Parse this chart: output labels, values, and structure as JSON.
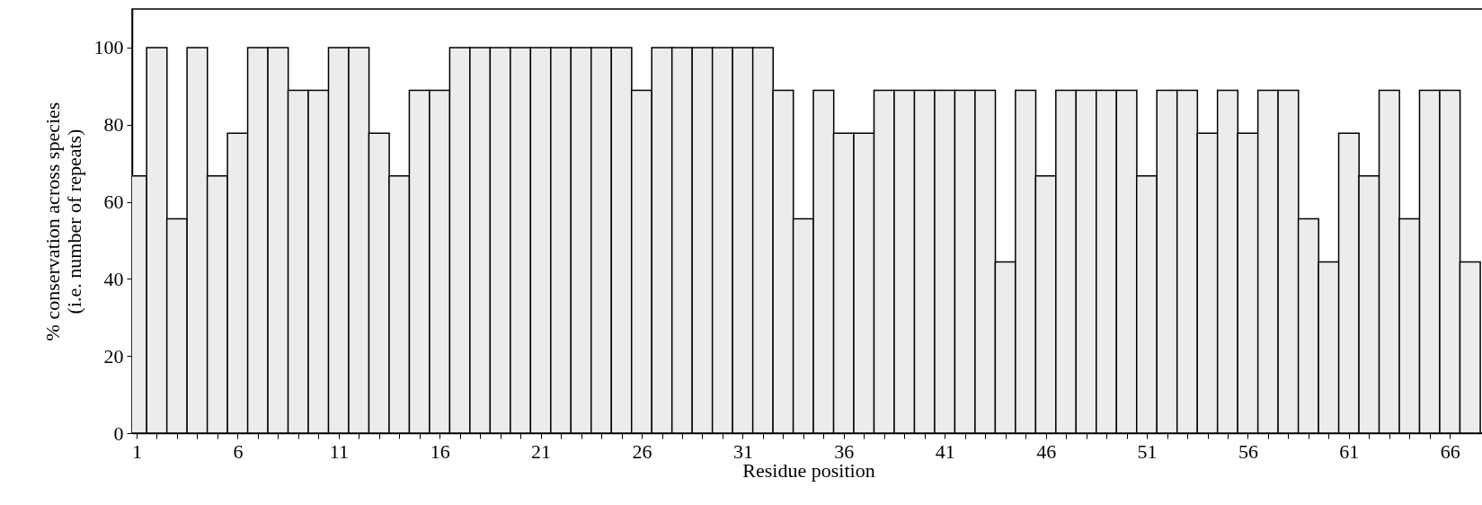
{
  "chart_data": {
    "type": "bar",
    "xlabel": "Residue position",
    "ylabel": "% conservation across species\n(i.e. number of repeats)",
    "color": "#ececec",
    "x": [
      1,
      2,
      3,
      4,
      5,
      6,
      7,
      8,
      9,
      10,
      11,
      12,
      13,
      14,
      15,
      16,
      17,
      18,
      19,
      20,
      21,
      22,
      23,
      24,
      25,
      26,
      27,
      28,
      29,
      30,
      31,
      32,
      33,
      34,
      35,
      36,
      37,
      38,
      39,
      40,
      41,
      42,
      43,
      44,
      45,
      46,
      47,
      48,
      49,
      50,
      51,
      52,
      53,
      54,
      55,
      56,
      57,
      58,
      59,
      60,
      61,
      62,
      63,
      64,
      65,
      66,
      67
    ],
    "values": [
      66.7,
      100,
      55.6,
      100,
      66.7,
      77.8,
      100,
      100,
      88.9,
      88.9,
      100,
      100,
      77.8,
      66.7,
      88.9,
      88.9,
      100,
      100,
      100,
      100,
      100,
      100,
      100,
      100,
      100,
      88.9,
      100,
      100,
      100,
      100,
      100,
      100,
      88.9,
      55.6,
      88.9,
      77.8,
      77.8,
      88.9,
      88.9,
      88.9,
      88.9,
      88.9,
      88.9,
      44.4,
      88.9,
      66.7,
      88.9,
      88.9,
      88.9,
      88.9,
      66.7,
      88.9,
      88.9,
      77.8,
      88.9,
      77.8,
      88.9,
      88.9,
      55.6,
      44.4,
      77.8,
      66.7,
      88.9,
      55.6,
      88.9,
      88.9,
      44.4
    ],
    "xlim": [
      1,
      67.5
    ],
    "xticks": [
      1,
      {
        "value": 2,
        "label": null
      },
      {
        "value": 3,
        "label": null
      },
      {
        "value": 4,
        "label": null
      },
      {
        "value": 5,
        "label": null
      },
      6,
      {
        "value": 7,
        "label": null
      },
      {
        "value": 8,
        "label": null
      },
      {
        "value": 9,
        "label": null
      },
      {
        "value": 10,
        "label": null
      },
      11,
      {
        "value": 12,
        "label": null
      },
      {
        "value": 13,
        "label": null
      },
      {
        "value": 14,
        "label": null
      },
      {
        "value": 15,
        "label": null
      },
      16,
      {
        "value": 17,
        "label": null
      },
      {
        "value": 18,
        "label": null
      },
      {
        "value": 19,
        "label": null
      },
      {
        "value": 20,
        "label": null
      },
      21,
      {
        "value": 22,
        "label": null
      },
      {
        "value": 23,
        "label": null
      },
      {
        "value": 24,
        "label": null
      },
      {
        "value": 25,
        "label": null
      },
      26,
      {
        "value": 27,
        "label": null
      },
      {
        "value": 28,
        "label": null
      },
      {
        "value": 29,
        "label": null
      },
      {
        "value": 30,
        "label": null
      },
      31,
      {
        "value": 32,
        "label": null
      },
      {
        "value": 33,
        "label": null
      },
      {
        "value": 34,
        "label": null
      },
      {
        "value": 35,
        "label": null
      },
      36,
      {
        "value": 37,
        "label": null
      },
      {
        "value": 38,
        "label": null
      },
      {
        "value": 39,
        "label": null
      },
      {
        "value": 40,
        "label": null
      },
      41,
      {
        "value": 42,
        "label": null
      },
      {
        "value": 43,
        "label": null
      },
      {
        "value": 44,
        "label": null
      },
      {
        "value": 45,
        "label": null
      },
      46,
      {
        "value": 47,
        "label": null
      },
      {
        "value": 48,
        "label": null
      },
      {
        "value": 49,
        "label": null
      },
      {
        "value": 50,
        "label": null
      },
      51,
      {
        "value": 52,
        "label": null
      },
      {
        "value": 53,
        "label": null
      },
      {
        "value": 54,
        "label": null
      },
      {
        "value": 55,
        "label": null
      },
      56,
      {
        "value": 57,
        "label": null
      },
      {
        "value": 58,
        "label": null
      },
      {
        "value": 59,
        "label": null
      },
      {
        "value": 60,
        "label": null
      },
      61,
      {
        "value": 62,
        "label": null
      },
      {
        "value": 63,
        "label": null
      },
      {
        "value": 64,
        "label": null
      },
      {
        "value": 65,
        "label": null
      },
      66
    ],
    "ylim": [
      0,
      110
    ],
    "yticks": [
      0,
      20,
      40,
      60,
      80,
      100
    ]
  }
}
